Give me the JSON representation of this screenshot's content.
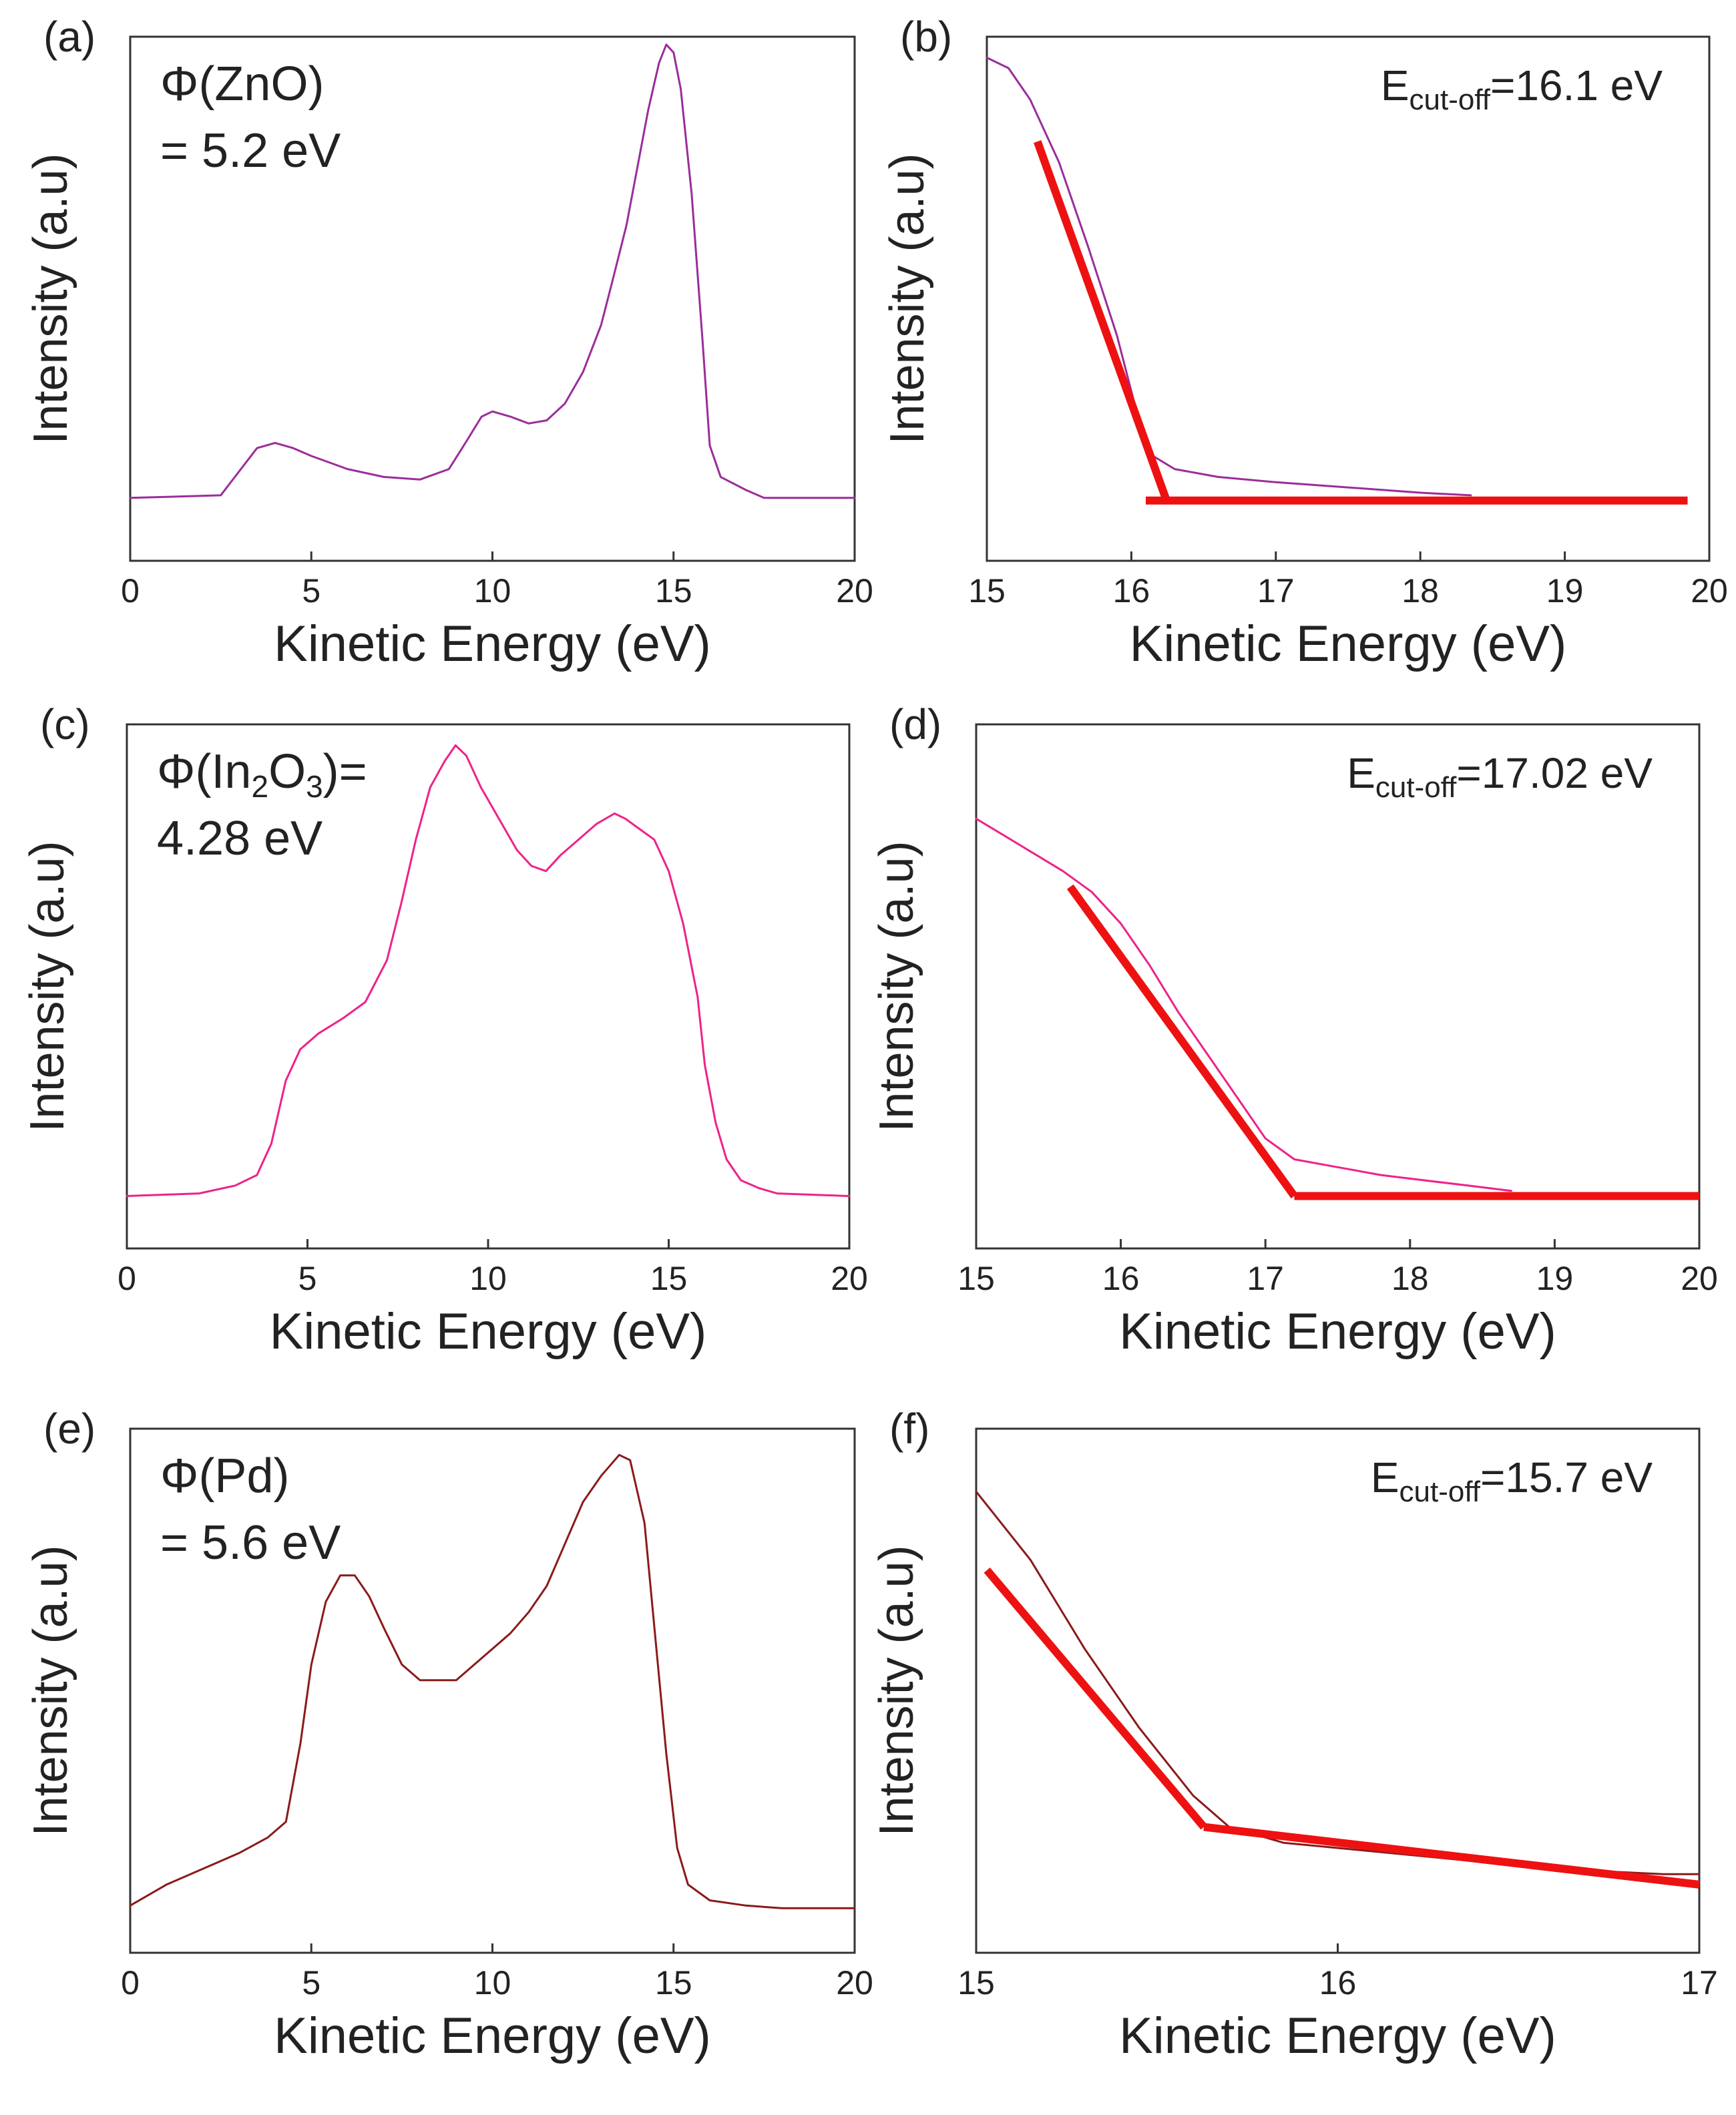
{
  "chart_data": [
    {
      "panel": "a",
      "panel_label": "(a)",
      "type": "line",
      "xlabel": "Kinetic Energy (eV)",
      "ylabel": "Intensity (a.u)",
      "xlim": [
        0,
        20
      ],
      "ylim": [
        0,
        1.0
      ],
      "xticks": [
        0,
        5,
        10,
        15,
        20
      ],
      "annotation_lines": [
        "Φ(ZnO)",
        "= 5.2 eV"
      ],
      "series": [
        {
          "name": "ZnO UPS spectrum",
          "color": "#9b2d9b",
          "x": [
            0,
            2.5,
            3.0,
            3.5,
            4.0,
            4.5,
            5.0,
            6.0,
            7.0,
            8.0,
            8.8,
            9.3,
            9.7,
            10.0,
            10.5,
            11.0,
            11.5,
            12.0,
            12.5,
            13.0,
            13.3,
            13.7,
            14.0,
            14.3,
            14.6,
            14.8,
            15.0,
            15.2,
            15.5,
            15.8,
            16.0,
            16.3,
            17.0,
            17.5,
            20
          ],
          "y": [
            0.12,
            0.125,
            0.17,
            0.215,
            0.225,
            0.215,
            0.2,
            0.175,
            0.16,
            0.155,
            0.175,
            0.23,
            0.275,
            0.285,
            0.275,
            0.262,
            0.268,
            0.3,
            0.36,
            0.45,
            0.53,
            0.64,
            0.75,
            0.86,
            0.95,
            0.985,
            0.97,
            0.9,
            0.7,
            0.42,
            0.22,
            0.16,
            0.135,
            0.12,
            0.12
          ]
        }
      ]
    },
    {
      "panel": "b",
      "panel_label": "(b)",
      "type": "line",
      "xlabel": "Kinetic Energy (eV)",
      "ylabel": "Intensity (a.u)",
      "xlim": [
        15,
        20
      ],
      "ylim": [
        0,
        1.0
      ],
      "xticks": [
        15,
        16,
        17,
        18,
        19,
        20
      ],
      "cutoff_label": "E",
      "cutoff_sub": "cut-off",
      "cutoff_value": "=16.1 eV",
      "series": [
        {
          "name": "ZnO cut-off spectrum",
          "color": "#9b2d9b",
          "x": [
            15.0,
            15.15,
            15.3,
            15.5,
            15.7,
            15.9,
            16.05,
            16.15,
            16.3,
            16.6,
            17.0,
            17.5,
            18.0,
            18.35
          ],
          "y": [
            0.96,
            0.94,
            0.88,
            0.76,
            0.6,
            0.43,
            0.27,
            0.2,
            0.175,
            0.16,
            0.15,
            0.14,
            0.13,
            0.125
          ]
        },
        {
          "name": "linear fit (slope)",
          "color": "#ee1111",
          "x": [
            15.35,
            16.25
          ],
          "y": [
            0.8,
            0.11
          ]
        },
        {
          "name": "linear fit (baseline)",
          "color": "#ee1111",
          "x": [
            16.1,
            19.85
          ],
          "y": [
            0.115,
            0.115
          ]
        }
      ]
    },
    {
      "panel": "c",
      "panel_label": "(c)",
      "type": "line",
      "xlabel": "Kinetic Energy (eV)",
      "ylabel": "Intensity (a.u)",
      "xlim": [
        0,
        20
      ],
      "ylim": [
        0,
        1.0
      ],
      "xticks": [
        0,
        5,
        10,
        15,
        20
      ],
      "annotation_lines": [
        "Φ(In",
        "2",
        "O",
        "3",
        ")=",
        "4.28 eV"
      ],
      "series": [
        {
          "name": "In2O3 UPS spectrum",
          "color": "#ee2288",
          "x": [
            0,
            2.0,
            3.0,
            3.6,
            4.0,
            4.4,
            4.8,
            5.3,
            6.0,
            6.6,
            7.2,
            7.6,
            8.0,
            8.4,
            8.8,
            9.1,
            9.4,
            9.8,
            10.3,
            10.8,
            11.2,
            11.6,
            12.0,
            12.5,
            13.0,
            13.5,
            13.8,
            14.2,
            14.6,
            15.0,
            15.4,
            15.8,
            16.0,
            16.3,
            16.6,
            17.0,
            17.5,
            18.0,
            20
          ],
          "y": [
            0.1,
            0.105,
            0.12,
            0.14,
            0.2,
            0.32,
            0.38,
            0.41,
            0.44,
            0.47,
            0.55,
            0.66,
            0.78,
            0.88,
            0.93,
            0.96,
            0.94,
            0.88,
            0.82,
            0.76,
            0.73,
            0.72,
            0.75,
            0.78,
            0.81,
            0.83,
            0.82,
            0.8,
            0.78,
            0.72,
            0.62,
            0.48,
            0.35,
            0.24,
            0.17,
            0.13,
            0.115,
            0.105,
            0.1
          ]
        }
      ]
    },
    {
      "panel": "d",
      "panel_label": "(d)",
      "type": "line",
      "xlabel": "Kinetic Energy (eV)",
      "ylabel": "Intensity (a.u)",
      "xlim": [
        15,
        20
      ],
      "ylim": [
        0,
        1.0
      ],
      "xticks": [
        15,
        16,
        17,
        18,
        19,
        20
      ],
      "cutoff_label": "E",
      "cutoff_sub": "cut-off",
      "cutoff_value": "=17.02 eV",
      "series": [
        {
          "name": "In2O3 cut-off spectrum",
          "color": "#ee2288",
          "x": [
            15.0,
            15.3,
            15.6,
            15.8,
            16.0,
            16.2,
            16.4,
            16.6,
            16.8,
            17.0,
            17.2,
            17.5,
            17.8,
            18.1,
            18.4,
            18.7
          ],
          "y": [
            0.82,
            0.77,
            0.72,
            0.68,
            0.62,
            0.54,
            0.45,
            0.37,
            0.29,
            0.21,
            0.17,
            0.155,
            0.14,
            0.13,
            0.12,
            0.11
          ]
        },
        {
          "name": "linear fit (slope)",
          "color": "#ee1111",
          "x": [
            15.65,
            17.2
          ],
          "y": [
            0.69,
            0.1
          ]
        },
        {
          "name": "linear fit (baseline)",
          "color": "#ee1111",
          "x": [
            17.2,
            20.0
          ],
          "y": [
            0.1,
            0.1
          ]
        }
      ]
    },
    {
      "panel": "e",
      "panel_label": "(e)",
      "type": "line",
      "xlabel": "Kinetic Energy (eV)",
      "ylabel": "Intensity (a.u)",
      "xlim": [
        0,
        20
      ],
      "ylim": [
        0,
        1.0
      ],
      "xticks": [
        0,
        5,
        10,
        15,
        20
      ],
      "annotation_lines": [
        "Φ(Pd)",
        "= 5.6 eV"
      ],
      "series": [
        {
          "name": "Pd UPS spectrum",
          "color": "#8b1a1a",
          "x": [
            0,
            1.0,
            2.0,
            3.0,
            3.8,
            4.3,
            4.7,
            5.0,
            5.4,
            5.8,
            6.2,
            6.6,
            7.0,
            7.5,
            8.0,
            8.5,
            9.0,
            9.5,
            10.0,
            10.5,
            11.0,
            11.5,
            12.0,
            12.5,
            13.0,
            13.5,
            13.8,
            14.2,
            14.5,
            14.8,
            15.1,
            15.4,
            16.0,
            17.0,
            18.0,
            20
          ],
          "y": [
            0.09,
            0.13,
            0.16,
            0.19,
            0.22,
            0.25,
            0.4,
            0.55,
            0.67,
            0.72,
            0.72,
            0.68,
            0.62,
            0.55,
            0.52,
            0.52,
            0.52,
            0.55,
            0.58,
            0.61,
            0.65,
            0.7,
            0.78,
            0.86,
            0.91,
            0.95,
            0.94,
            0.82,
            0.6,
            0.38,
            0.2,
            0.13,
            0.1,
            0.09,
            0.085,
            0.085
          ]
        }
      ]
    },
    {
      "panel": "f",
      "panel_label": "(f)",
      "type": "line",
      "xlabel": "Kinetic Energy (eV)",
      "ylabel": "Intensity (a.u)",
      "xlim": [
        15,
        17
      ],
      "ylim": [
        0,
        1.0
      ],
      "xticks": [
        15,
        16,
        17
      ],
      "cutoff_label": "E",
      "cutoff_sub": "cut-off",
      "cutoff_value": "=15.7 eV",
      "series": [
        {
          "name": "Pd cut-off spectrum",
          "color": "#8b1a1a",
          "x": [
            15.0,
            15.15,
            15.3,
            15.45,
            15.6,
            15.7,
            15.85,
            16.0,
            16.3,
            16.6,
            16.9,
            17.0
          ],
          "y": [
            0.88,
            0.75,
            0.58,
            0.43,
            0.3,
            0.24,
            0.21,
            0.2,
            0.18,
            0.16,
            0.15,
            0.15
          ]
        },
        {
          "name": "linear fit (slope)",
          "color": "#ee1111",
          "x": [
            15.03,
            15.63
          ],
          "y": [
            0.73,
            0.24
          ]
        },
        {
          "name": "linear fit (baseline)",
          "color": "#ee1111",
          "x": [
            15.63,
            17.0
          ],
          "y": [
            0.24,
            0.13
          ]
        }
      ]
    }
  ]
}
